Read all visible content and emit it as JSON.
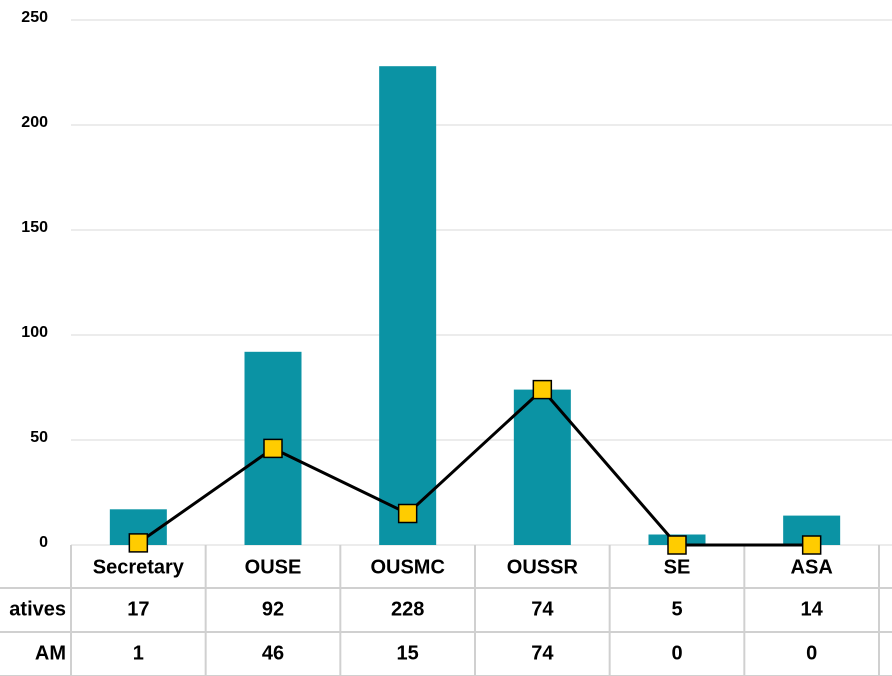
{
  "chart_data": {
    "type": "bar-line",
    "categories": [
      "Secretary",
      "OUSE",
      "OUSMC",
      "OUSSR",
      "SE",
      "ASA"
    ],
    "series": [
      {
        "name": "atives",
        "type": "bar",
        "color": "#0b93a4",
        "values": [
          17,
          92,
          228,
          74,
          5,
          14
        ]
      },
      {
        "name": "AM",
        "type": "line",
        "color": "#000000",
        "marker_color": "#ffcc00",
        "values": [
          1,
          46,
          15,
          74,
          0,
          0
        ]
      }
    ],
    "ylim": [
      0,
      250
    ],
    "yticks": [
      0,
      50,
      100,
      150,
      200,
      250
    ],
    "grid": true
  }
}
